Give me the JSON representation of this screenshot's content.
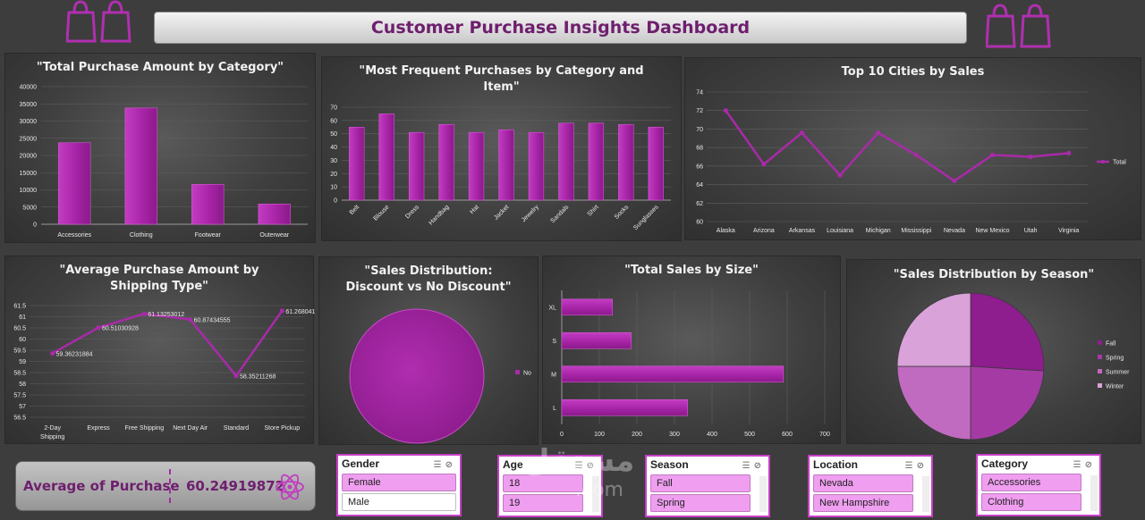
{
  "header": {
    "title": "Customer Purchase Insights Dashboard",
    "left_icon": "shopping-bags-icon",
    "right_icon": "shopping-bags-icon",
    "accent_color": "#b02fb0"
  },
  "charts": {
    "category": {
      "title": "\"Total Purchase Amount by Category\"",
      "chart_data": {
        "type": "bar",
        "categories": [
          "Accessories",
          "Clothing",
          "Footwear",
          "Outerwear"
        ],
        "values": [
          23700,
          33800,
          11600,
          5900
        ],
        "yticks": [
          "0",
          "5000",
          "10000",
          "15000",
          "20000",
          "25000",
          "30000",
          "35000",
          "40000"
        ],
        "ylim": [
          0,
          40000
        ]
      }
    },
    "items": {
      "title": "\"Most Frequent Purchases by Category and Item\"",
      "chart_data": {
        "type": "bar",
        "categories": [
          "Belt",
          "Blouse",
          "Dress",
          "Handbag",
          "Hat",
          "Jacket",
          "Jewelry",
          "Sandals",
          "Shirt",
          "Socks",
          "Sunglasses"
        ],
        "values": [
          55,
          65,
          51,
          57,
          51,
          53,
          51,
          58,
          58,
          57,
          55
        ],
        "yticks": [
          "0",
          "10",
          "20",
          "30",
          "40",
          "50",
          "60",
          "70"
        ],
        "ylim": [
          0,
          70
        ]
      }
    },
    "cities": {
      "title": "Top 10 Cities by Sales",
      "chart_data": {
        "type": "line",
        "categories": [
          "Alaska",
          "Arizona",
          "Arkansas",
          "Louisiana",
          "Michigan",
          "Mississippi",
          "Nevada",
          "New Mexico",
          "Utah",
          "Virginia"
        ],
        "values": [
          72,
          66.2,
          69.6,
          65,
          69.6,
          67.2,
          64.4,
          67.2,
          67,
          67.4
        ],
        "yticks": [
          "60",
          "62",
          "64",
          "66",
          "68",
          "70",
          "72",
          "74"
        ],
        "ylim": [
          60,
          74
        ],
        "legend": [
          "Total"
        ],
        "legend_position": "right"
      }
    },
    "shipping": {
      "title": "\"Average Purchase Amount by Shipping Type\"",
      "chart_data": {
        "type": "line",
        "categories": [
          "2-Day Shipping",
          "Express",
          "Free Shipping",
          "Next Day Air",
          "Standard",
          "Store Pickup"
        ],
        "xtick_lines": [
          [
            "2-Day",
            "Shipping"
          ],
          [
            "Express"
          ],
          [
            "Free Shipping"
          ],
          [
            "Next Day Air"
          ],
          [
            "Standard"
          ],
          [
            "Store Pickup"
          ]
        ],
        "values": [
          59.36231884,
          60.51030928,
          61.13253012,
          60.87434555,
          58.35211268,
          61.26804124
        ],
        "labels": [
          "59.36231884",
          "60.51030928",
          "61.13253012",
          "60.87434555",
          "58.35211268",
          "61.26804124"
        ],
        "yticks": [
          "56.5",
          "57",
          "57.5",
          "58",
          "58.5",
          "59",
          "59.5",
          "60",
          "60.5",
          "61",
          "61.5"
        ],
        "ylim": [
          56.5,
          61.5
        ]
      }
    },
    "discount": {
      "title": "\"Sales Distribution: Discount vs No Discount\"",
      "chart_data": {
        "type": "pie",
        "slices": [
          {
            "name": "No",
            "value": 100
          }
        ],
        "legend_position": "right"
      }
    },
    "size": {
      "title": "\"Total Sales by Size\"",
      "chart_data": {
        "type": "bar",
        "orientation": "horizontal",
        "categories": [
          "XL",
          "S",
          "M",
          "L"
        ],
        "values": [
          135,
          185,
          590,
          335
        ],
        "xticks": [
          "0",
          "100",
          "200",
          "300",
          "400",
          "500",
          "600",
          "700"
        ],
        "xlim": [
          0,
          700
        ]
      }
    },
    "season": {
      "title": "\"Sales Distribution by Season\"",
      "chart_data": {
        "type": "pie",
        "slices": [
          {
            "name": "Fall",
            "value": 26,
            "color": "#8e1d8e"
          },
          {
            "name": "Spring",
            "value": 24,
            "color": "#a53aa5"
          },
          {
            "name": "Summer",
            "value": 25,
            "color": "#c06ac0"
          },
          {
            "name": "Winter",
            "value": 25,
            "color": "#d9a2d9"
          }
        ],
        "legend_position": "right"
      }
    }
  },
  "kpi": {
    "label": "Average of Purchase",
    "value": "60.24919872",
    "icon": "atom-icon"
  },
  "slicers": {
    "gender": {
      "title": "Gender",
      "items": [
        {
          "label": "Female",
          "selected": true
        },
        {
          "label": "Male",
          "selected": false
        }
      ]
    },
    "age": {
      "title": "Age",
      "items": [
        {
          "label": "18",
          "selected": true
        },
        {
          "label": "19",
          "selected": true
        }
      ]
    },
    "season": {
      "title": "Season",
      "items": [
        {
          "label": "Fall",
          "selected": true
        },
        {
          "label": "Spring",
          "selected": true
        }
      ]
    },
    "location": {
      "title": "Location",
      "items": [
        {
          "label": "Nevada",
          "selected": true
        },
        {
          "label": "New Hampshire",
          "selected": true
        }
      ]
    },
    "category": {
      "title": "Category",
      "items": [
        {
          "label": "Accessories",
          "selected": true
        },
        {
          "label": "Clothing",
          "selected": true
        }
      ]
    }
  },
  "watermark": {
    "text": "مستقل",
    "subtext": ".com"
  }
}
